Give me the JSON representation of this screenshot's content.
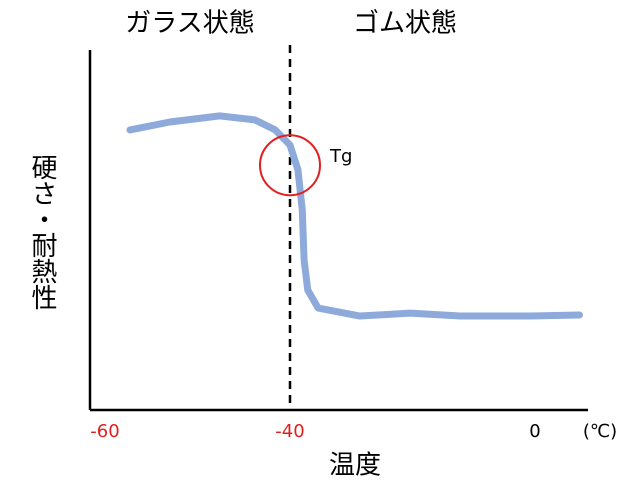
{
  "chart_data": {
    "type": "line",
    "annotations": {
      "left_region": "ガラス状態",
      "right_region": "ゴム状態"
    },
    "ylabel": "硬さ・耐熱性",
    "xlabel": "温度",
    "xunit": "(℃)",
    "xlim": [
      -61.6,
      8.7
    ],
    "xticks": [
      -60,
      -40,
      0
    ],
    "xtick_colors": [
      "#e02020",
      "#e02020",
      "#000000"
    ],
    "ylim": [
      0,
      100
    ],
    "vline": -40,
    "tg_marker": {
      "x": -40,
      "y": 68,
      "label": "Tg",
      "color": "#e02020"
    },
    "x": [
      -57.3,
      -53.0,
      -47.6,
      -43.8,
      -41.6,
      -40,
      -38.7,
      -38.0,
      -37.7,
      -37.1,
      -35.4,
      -28.6,
      -20.4,
      -12.2,
      -0.8,
      7.3
    ],
    "series": [
      {
        "color": "#8eaadb",
        "values": [
          77.8,
          80,
          81.7,
          80.6,
          77.8,
          73.6,
          66.7,
          55.6,
          41.7,
          33.3,
          28.3,
          26.1,
          26.9,
          26.1,
          26.1,
          26.4
        ]
      }
    ]
  }
}
